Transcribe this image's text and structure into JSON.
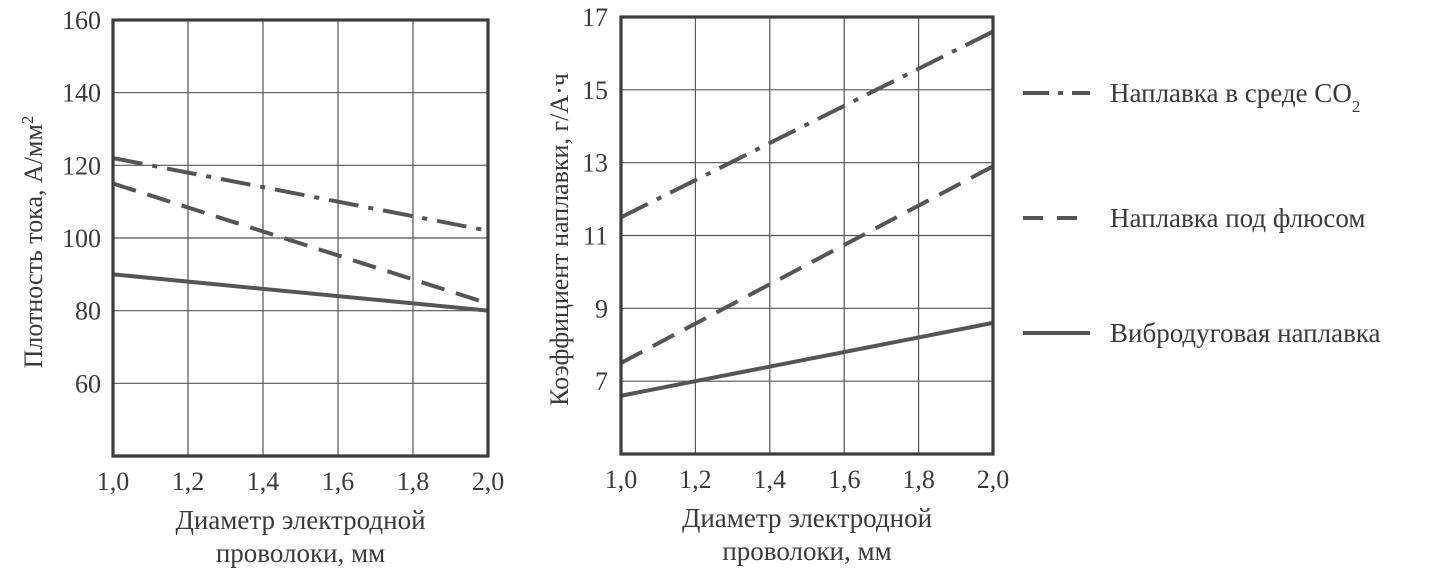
{
  "chart_data": [
    {
      "type": "line",
      "xlabel": [
        "Диаметр электродной",
        "проволоки, мм"
      ],
      "ylabel": "Плотность тока, А/мм",
      "ylabel_sup": "2",
      "xlim": [
        1.0,
        2.0
      ],
      "ylim": [
        40,
        160
      ],
      "xticks": [
        "1,0",
        "1,2",
        "1,4",
        "1,6",
        "1,8",
        "2,0"
      ],
      "yticks": [
        "60",
        "80",
        "100",
        "120",
        "140",
        "160"
      ],
      "grid": true,
      "series": [
        {
          "style": "dashdot",
          "x": [
            1.0,
            2.0
          ],
          "y": [
            122,
            102
          ]
        },
        {
          "style": "dashed",
          "x": [
            1.0,
            2.0
          ],
          "y": [
            115,
            82
          ]
        },
        {
          "style": "solid",
          "x": [
            1.0,
            2.0
          ],
          "y": [
            90,
            80
          ]
        }
      ]
    },
    {
      "type": "line",
      "xlabel": [
        "Диаметр электродной",
        "проволоки, мм"
      ],
      "ylabel": "Коэффициент наплавки, г/А·ч",
      "xlim": [
        1.0,
        2.0
      ],
      "ylim": [
        5,
        17
      ],
      "xticks": [
        "1,0",
        "1,2",
        "1,4",
        "1,6",
        "1,8",
        "2,0"
      ],
      "yticks": [
        "7",
        "9",
        "11",
        "13",
        "15",
        "17"
      ],
      "grid": true,
      "series": [
        {
          "style": "dashdot",
          "x": [
            1.0,
            2.0
          ],
          "y": [
            11.5,
            16.6
          ]
        },
        {
          "style": "dashed",
          "x": [
            1.0,
            2.0
          ],
          "y": [
            7.5,
            12.9
          ]
        },
        {
          "style": "solid",
          "x": [
            1.0,
            2.0
          ],
          "y": [
            6.6,
            8.6
          ]
        }
      ]
    }
  ],
  "legend": {
    "placement": "right",
    "entries": [
      {
        "style": "dashdot",
        "label": "Наплавка в среде CO",
        "sub": "2"
      },
      {
        "style": "dashed",
        "label": "Наплавка под флюсом"
      },
      {
        "style": "solid",
        "label": "Вибродуговая наплавка"
      }
    ]
  }
}
